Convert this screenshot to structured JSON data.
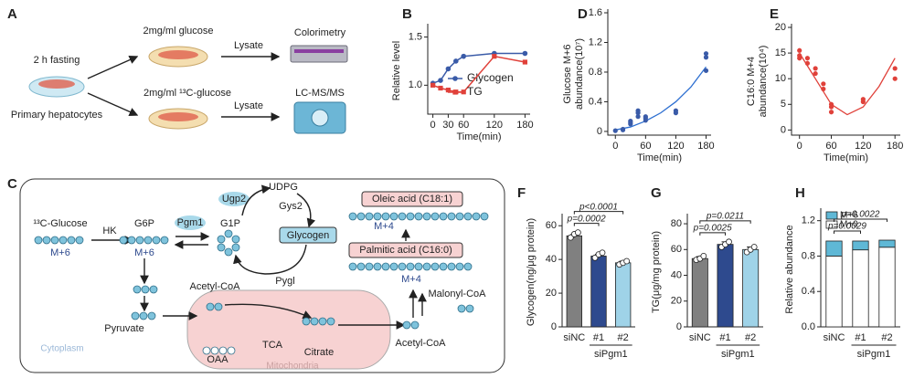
{
  "panel_a": {
    "letter": "A",
    "start": "2 h fasting",
    "cells": "Primary hepatocytes",
    "conditions": [
      "2mg/ml glucose",
      "2mg/ml ¹³C-glucose"
    ],
    "steps": [
      "Lysate",
      "Lysate"
    ],
    "readouts": [
      "Colorimetry",
      "LC-MS/MS"
    ]
  },
  "panel_c": {
    "letter": "C",
    "glucose": "¹³C-Glucose",
    "glucose_label": "M+6",
    "hk": "HK",
    "g6p": "G6P",
    "g6p_label": "M+6",
    "pgm1": "Pgm1",
    "ugp2": "Ugp2",
    "g1p": "G1P",
    "udpg": "UDPG",
    "gys2": "Gys2",
    "glycogen": "Glycogen",
    "pygl": "Pygl",
    "pyruvate": "Pyruvate",
    "acetyl_coa_mito": "Acetyl-CoA",
    "oaa": "OAA",
    "tca": "TCA",
    "citrate": "Citrate",
    "mitochondria": "Mitochondria",
    "cytoplasm": "Cytoplasm",
    "acetyl_coa": "Acetyl-CoA",
    "malonyl_coa": "Malonyl-CoA",
    "palmitic": "Palmitic acid (C16:0)",
    "palmitic_label": "M+4",
    "oleic": "Oleic acid (C18:1)",
    "oleic_label": "M+4"
  },
  "chart_data": [
    {
      "panel": "B",
      "type": "line",
      "ylabel": "Relative level",
      "xlabel": "Time(min)",
      "x": [
        0,
        15,
        30,
        45,
        60,
        120,
        180
      ],
      "series": [
        {
          "name": "Glycogen",
          "color": "#3a5ba8",
          "values": [
            1.02,
            1.05,
            1.17,
            1.25,
            1.3,
            1.33,
            1.33
          ]
        },
        {
          "name": "TG",
          "color": "#e0413a",
          "values": [
            1.0,
            0.97,
            0.95,
            0.93,
            0.93,
            1.3,
            1.24
          ]
        }
      ],
      "xlim": [
        -10,
        190
      ],
      "ylim": [
        0.7,
        1.6
      ],
      "xticks": [
        0,
        30,
        60,
        120,
        180
      ],
      "yticks": [
        {
          "value": 1,
          "label": "1.0"
        },
        {
          "value": 1.5,
          "label": "1.5"
        }
      ]
    },
    {
      "panel": "D",
      "type": "scatter",
      "ylabel": [
        "Glucose M+6",
        "abundance(10⁷)"
      ],
      "xlabel": "Time(min)",
      "color": "#3a5ba8",
      "x": [
        0,
        15,
        15,
        30,
        30,
        30,
        45,
        45,
        45,
        60,
        60,
        60,
        120,
        120,
        180,
        180,
        180
      ],
      "values": [
        0.01,
        0.02,
        0.03,
        0.1,
        0.12,
        0.14,
        0.2,
        0.25,
        0.28,
        0.15,
        0.18,
        0.2,
        0.25,
        0.28,
        0.82,
        1.0,
        1.05
      ],
      "fit": {
        "color": "#2d6fd1",
        "x": [
          0,
          30,
          60,
          90,
          120,
          150,
          180
        ],
        "values": [
          0.02,
          0.06,
          0.14,
          0.25,
          0.4,
          0.6,
          0.87
        ]
      },
      "xlim": [
        -15,
        190
      ],
      "ylim": [
        -0.05,
        1.6
      ],
      "xticks": [
        0,
        60,
        120,
        180
      ],
      "yticks": [
        0,
        0.4,
        0.8,
        1.2,
        1.6
      ]
    },
    {
      "panel": "E",
      "type": "scatter",
      "ylabel": [
        "C16:0  M+4",
        "abundance(10⁴)"
      ],
      "xlabel": "Time(min)",
      "color": "#e0413a",
      "x": [
        0,
        0,
        0,
        15,
        15,
        30,
        30,
        45,
        45,
        60,
        60,
        60,
        120,
        120,
        180,
        180
      ],
      "values": [
        14.5,
        15.5,
        14,
        13,
        14,
        11,
        12,
        8,
        9,
        5,
        4.5,
        3.5,
        5.5,
        6,
        12,
        10
      ],
      "fit": {
        "color": "#e0413a",
        "x": [
          0,
          30,
          60,
          90,
          120,
          150,
          180
        ],
        "values": [
          15,
          10,
          5,
          3,
          4.5,
          8.5,
          14
        ]
      },
      "xlim": [
        -15,
        190
      ],
      "ylim": [
        -1,
        20
      ],
      "xticks": [
        0,
        60,
        120,
        180
      ],
      "yticks": [
        0,
        5,
        10,
        15,
        20
      ]
    },
    {
      "panel": "F",
      "type": "bar",
      "ylabel": "Glycogen(ng/μg protein)",
      "categories": [
        "siNC",
        "#1",
        "#2"
      ],
      "group_label": "siPgm1",
      "values": [
        54,
        42,
        38
      ],
      "errors": [
        1,
        1,
        1
      ],
      "colors": [
        "#808080",
        "#2e4a8e",
        "#9fd3e8"
      ],
      "points": [
        [
          53,
          55,
          56
        ],
        [
          41,
          43,
          44
        ],
        [
          37,
          38,
          39
        ]
      ],
      "annotations": [
        "p=0.0002",
        "p<0.0001"
      ],
      "ylim": [
        0,
        65
      ],
      "yticks": [
        0,
        20,
        40,
        60
      ]
    },
    {
      "panel": "G",
      "type": "bar",
      "ylabel": "TG(μg/mg protein)",
      "categories": [
        "siNC",
        "#1",
        "#2"
      ],
      "group_label": "siPgm1",
      "values": [
        53,
        64,
        60
      ],
      "errors": [
        1.5,
        2,
        2
      ],
      "colors": [
        "#808080",
        "#2e4a8e",
        "#9fd3e8"
      ],
      "points": [
        [
          52,
          53,
          55
        ],
        [
          62,
          64,
          66
        ],
        [
          58,
          60,
          62
        ]
      ],
      "annotations": [
        "p=0.0025",
        "p=0.0211"
      ],
      "ylim": [
        0,
        85
      ],
      "yticks": [
        0,
        20,
        40,
        60,
        80
      ]
    },
    {
      "panel": "H",
      "type": "stacked_bar",
      "ylabel": "Relative abundance",
      "categories": [
        "siNC",
        "#1",
        "#2"
      ],
      "group_label": "siPgm1",
      "series": [
        {
          "name": "M+6",
          "color": "#5fb8d6",
          "values": [
            0.17,
            0.1,
            0.08
          ]
        },
        {
          "name": "M+0",
          "color": "#ffffff",
          "values": [
            0.8,
            0.87,
            0.9
          ]
        }
      ],
      "annotations": [
        "p=0.0029",
        "p=0.0022"
      ],
      "ylim": [
        0,
        1.3
      ],
      "yticks": [
        {
          "value": 0,
          "label": "0.0"
        },
        0.4,
        0.8,
        1.2
      ]
    }
  ]
}
